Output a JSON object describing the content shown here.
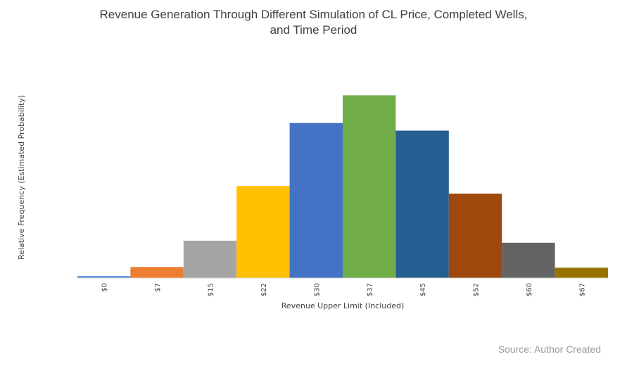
{
  "title_line1": "Revenue Generation Through Different Simulation of CL Price, Completed Wells,",
  "title_line2": "and Time Period",
  "source": "Source: Author Created",
  "chart_data": {
    "type": "bar",
    "categories": [
      "$0",
      "$7",
      "$15",
      "$22",
      "$30",
      "$37",
      "$45",
      "$52",
      "$60",
      "$67"
    ],
    "values": [
      0.003,
      0.016,
      0.054,
      0.133,
      0.224,
      0.264,
      0.213,
      0.122,
      0.051,
      0.015
    ],
    "colors": [
      "#5b9bd5",
      "#ed7d31",
      "#a5a5a5",
      "#ffc000",
      "#4472c4",
      "#70ad47",
      "#255e91",
      "#9e480e",
      "#636363",
      "#997300"
    ],
    "xlabel": "Revenue Upper Limit (Included)",
    "ylabel": "Relative Frequency (Estimated Probability)",
    "ylim": [
      0,
      0.3
    ],
    "grid": false,
    "legend": "none"
  }
}
